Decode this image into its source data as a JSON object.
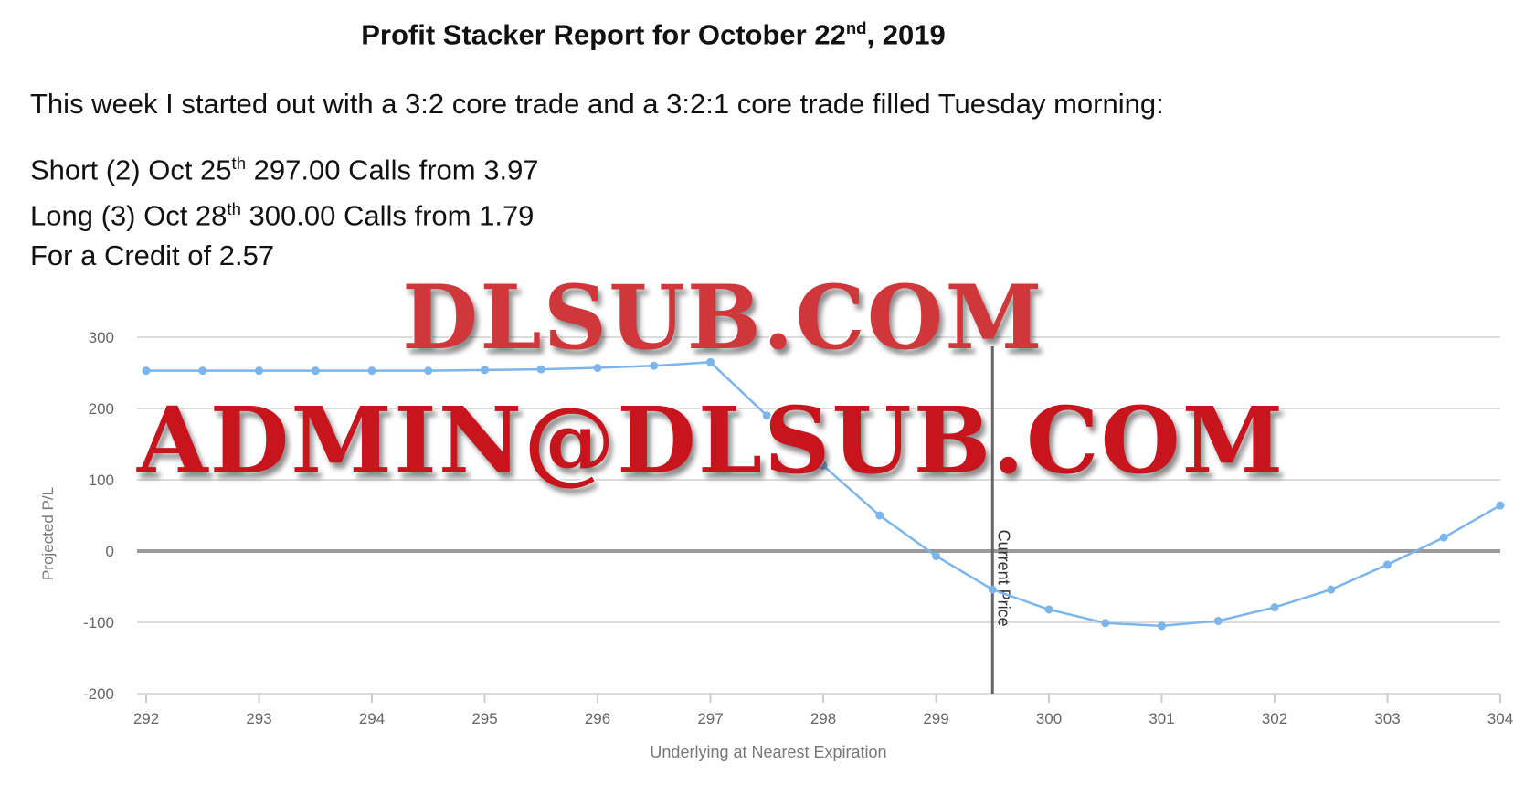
{
  "header": {
    "title_main": "Profit Stacker Report for October 22",
    "title_sup": "nd",
    "title_end": ", 2019"
  },
  "intro": "This week I started out with a 3:2 core trade and a 3:2:1 core trade filled Tuesday morning:",
  "legs": [
    {
      "pre": "Short (2) Oct 25",
      "sup": "th",
      "post": " 297.00 Calls from 3.97"
    },
    {
      "pre": "Long (3) Oct 28",
      "sup": "th",
      "post": " 300.00 Calls from 1.79"
    }
  ],
  "credit": "For a Credit of 2.57",
  "watermark": {
    "line1": "DLSUB.COM",
    "line2": "ADMIN@DLSUB.COM"
  },
  "chart_data": {
    "type": "line",
    "xlabel": "Underlying at Nearest Expiration",
    "ylabel": "Projected P/L",
    "xlim": [
      292,
      304
    ],
    "ylim": [
      -200,
      300
    ],
    "xticks": [
      292,
      293,
      294,
      295,
      296,
      297,
      298,
      299,
      300,
      301,
      302,
      303,
      304
    ],
    "yticks": [
      300,
      200,
      100,
      0,
      -100,
      -200
    ],
    "grid": true,
    "line_color": "#7cb5ec",
    "marker_line": {
      "x": 299.5,
      "label": "Current Price"
    },
    "series": [
      {
        "x": [
          292,
          292.5,
          293,
          293.5,
          294,
          294.5,
          295,
          295.5,
          296,
          296.5,
          297,
          297.5,
          298,
          298.5,
          299,
          299.5,
          300,
          300.5,
          301,
          301.5,
          302,
          302.5,
          303,
          303.5,
          304
        ],
        "y": [
          253,
          253,
          253,
          253,
          253,
          253,
          254,
          255,
          257,
          260,
          265,
          190,
          120,
          50,
          -7,
          -54,
          -82,
          -101,
          -105,
          -98,
          -79,
          -54,
          -19,
          19,
          64
        ]
      }
    ]
  }
}
